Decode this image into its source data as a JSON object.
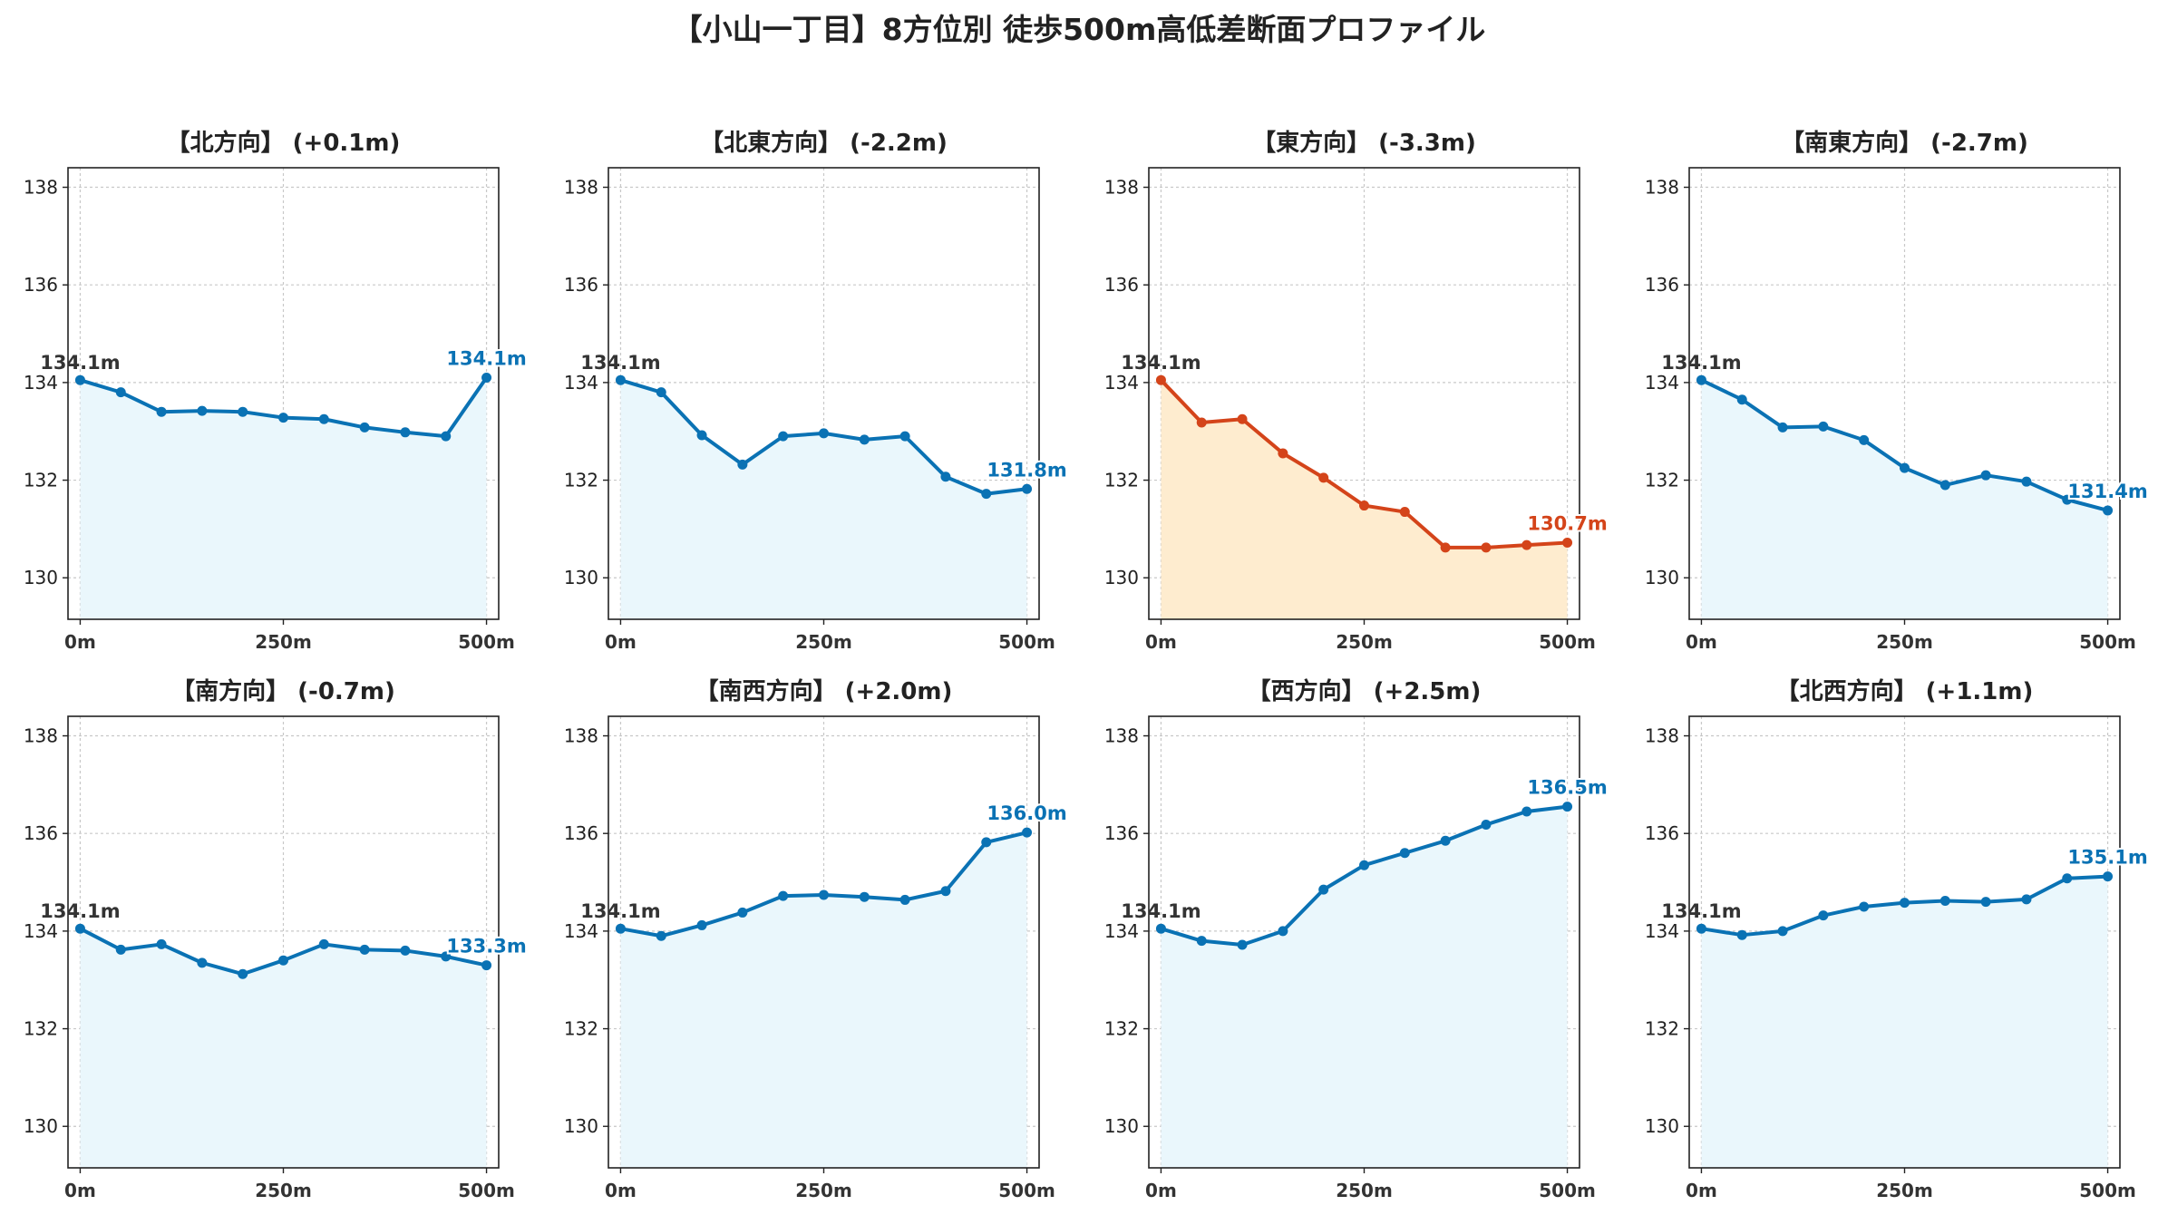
{
  "suptitle": "【小山一丁目】8方位別 徒歩500m高低差断面プロファイル",
  "colors": {
    "normal_line": "#0a72b4",
    "normal_fill": "#eaf7fc",
    "highlight_line": "#d4441a",
    "highlight_fill": "#feeccf",
    "start_label": "#333333",
    "grid": "#c8c8c8"
  },
  "chart_data": [
    {
      "type": "line",
      "title": "【北方向】 (+0.1m)",
      "highlight": false,
      "x": [
        0,
        50,
        100,
        150,
        200,
        250,
        300,
        350,
        400,
        450,
        500
      ],
      "y": [
        134.05,
        133.8,
        133.4,
        133.42,
        133.4,
        133.28,
        133.25,
        133.08,
        132.98,
        132.9,
        134.1
      ],
      "x_ticks": [
        "0m",
        "250m",
        "500m"
      ],
      "y_ticks": [
        130,
        132,
        134,
        136,
        138
      ],
      "start_label": "134.1m",
      "end_label": "134.1m",
      "xlim": [
        -15,
        515
      ],
      "ylim": [
        129.15,
        138.4
      ],
      "grid": true
    },
    {
      "type": "line",
      "title": "【北東方向】 (-2.2m)",
      "highlight": false,
      "x": [
        0,
        50,
        100,
        150,
        200,
        250,
        300,
        350,
        400,
        450,
        500
      ],
      "y": [
        134.05,
        133.8,
        132.92,
        132.32,
        132.9,
        132.96,
        132.83,
        132.9,
        132.07,
        131.72,
        131.82
      ],
      "x_ticks": [
        "0m",
        "250m",
        "500m"
      ],
      "y_ticks": [
        130,
        132,
        134,
        136,
        138
      ],
      "start_label": "134.1m",
      "end_label": "131.8m",
      "xlim": [
        -15,
        515
      ],
      "ylim": [
        129.15,
        138.4
      ],
      "grid": true
    },
    {
      "type": "line",
      "title": "【東方向】 (-3.3m)",
      "highlight": true,
      "x": [
        0,
        50,
        100,
        150,
        200,
        250,
        300,
        350,
        400,
        450,
        500
      ],
      "y": [
        134.05,
        133.18,
        133.25,
        132.55,
        132.05,
        131.48,
        131.35,
        130.62,
        130.62,
        130.67,
        130.72
      ],
      "x_ticks": [
        "0m",
        "250m",
        "500m"
      ],
      "y_ticks": [
        130,
        132,
        134,
        136,
        138
      ],
      "start_label": "134.1m",
      "end_label": "130.7m",
      "xlim": [
        -15,
        515
      ],
      "ylim": [
        129.15,
        138.4
      ],
      "grid": true
    },
    {
      "type": "line",
      "title": "【南東方向】 (-2.7m)",
      "highlight": false,
      "x": [
        0,
        50,
        100,
        150,
        200,
        250,
        300,
        350,
        400,
        450,
        500
      ],
      "y": [
        134.05,
        133.65,
        133.08,
        133.1,
        132.82,
        132.25,
        131.9,
        132.1,
        131.97,
        131.6,
        131.38
      ],
      "x_ticks": [
        "0m",
        "250m",
        "500m"
      ],
      "y_ticks": [
        130,
        132,
        134,
        136,
        138
      ],
      "start_label": "134.1m",
      "end_label": "131.4m",
      "xlim": [
        -15,
        515
      ],
      "ylim": [
        129.15,
        138.4
      ],
      "grid": true
    },
    {
      "type": "line",
      "title": "【南方向】 (-0.7m)",
      "highlight": false,
      "x": [
        0,
        50,
        100,
        150,
        200,
        250,
        300,
        350,
        400,
        450,
        500
      ],
      "y": [
        134.05,
        133.62,
        133.73,
        133.35,
        133.12,
        133.4,
        133.73,
        133.62,
        133.6,
        133.48,
        133.3
      ],
      "x_ticks": [
        "0m",
        "250m",
        "500m"
      ],
      "y_ticks": [
        130,
        132,
        134,
        136,
        138
      ],
      "start_label": "134.1m",
      "end_label": "133.3m",
      "xlim": [
        -15,
        515
      ],
      "ylim": [
        129.15,
        138.4
      ],
      "grid": true
    },
    {
      "type": "line",
      "title": "【南西方向】 (+2.0m)",
      "highlight": false,
      "x": [
        0,
        50,
        100,
        150,
        200,
        250,
        300,
        350,
        400,
        450,
        500
      ],
      "y": [
        134.05,
        133.9,
        134.12,
        134.38,
        134.72,
        134.74,
        134.7,
        134.64,
        134.82,
        135.82,
        136.02
      ],
      "x_ticks": [
        "0m",
        "250m",
        "500m"
      ],
      "y_ticks": [
        130,
        132,
        134,
        136,
        138
      ],
      "start_label": "134.1m",
      "end_label": "136.0m",
      "xlim": [
        -15,
        515
      ],
      "ylim": [
        129.15,
        138.4
      ],
      "grid": true
    },
    {
      "type": "line",
      "title": "【西方向】 (+2.5m)",
      "highlight": false,
      "x": [
        0,
        50,
        100,
        150,
        200,
        250,
        300,
        350,
        400,
        450,
        500
      ],
      "y": [
        134.05,
        133.8,
        133.72,
        134.0,
        134.85,
        135.35,
        135.6,
        135.85,
        136.18,
        136.45,
        136.55
      ],
      "x_ticks": [
        "0m",
        "250m",
        "500m"
      ],
      "y_ticks": [
        130,
        132,
        134,
        136,
        138
      ],
      "start_label": "134.1m",
      "end_label": "136.5m",
      "xlim": [
        -15,
        515
      ],
      "ylim": [
        129.15,
        138.4
      ],
      "grid": true
    },
    {
      "type": "line",
      "title": "【北西方向】 (+1.1m)",
      "highlight": false,
      "x": [
        0,
        50,
        100,
        150,
        200,
        250,
        300,
        350,
        400,
        450,
        500
      ],
      "y": [
        134.05,
        133.92,
        134.0,
        134.32,
        134.5,
        134.58,
        134.62,
        134.6,
        134.65,
        135.08,
        135.12
      ],
      "x_ticks": [
        "0m",
        "250m",
        "500m"
      ],
      "y_ticks": [
        130,
        132,
        134,
        136,
        138
      ],
      "start_label": "134.1m",
      "end_label": "135.1m",
      "xlim": [
        -15,
        515
      ],
      "ylim": [
        129.15,
        138.4
      ],
      "grid": true
    }
  ]
}
